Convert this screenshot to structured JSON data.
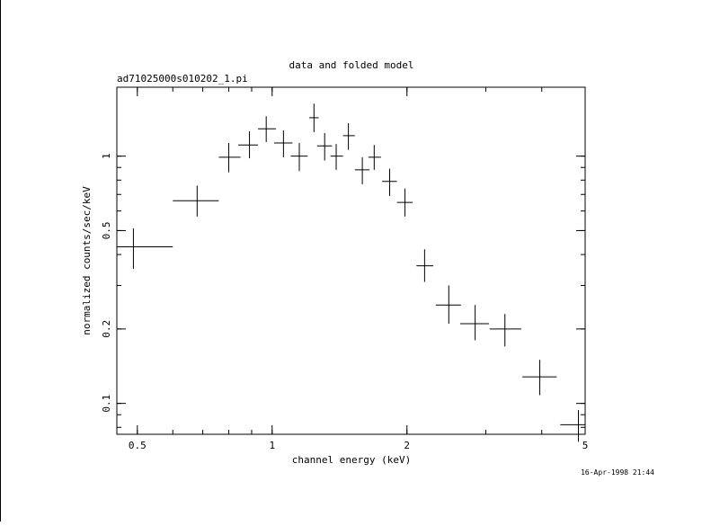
{
  "chart_data": {
    "type": "scatter",
    "title": "data and folded model",
    "subtitle": "ad71025000s010202_1.pi",
    "xlabel": "channel energy (keV)",
    "ylabel": "normalized counts/sec/keV",
    "footer": "16-Apr-1998 21:44",
    "x_scale": "log",
    "y_scale": "log",
    "xlim": [
      0.45,
      5.0
    ],
    "ylim": [
      0.075,
      1.9
    ],
    "grid": false,
    "legend": "none",
    "x_ticks": [
      {
        "value": 0.5,
        "label": "0.5"
      },
      {
        "value": 1,
        "label": "1"
      },
      {
        "value": 2,
        "label": "2"
      },
      {
        "value": 5,
        "label": "5"
      }
    ],
    "y_ticks": [
      {
        "value": 0.1,
        "label": "0.1"
      },
      {
        "value": 0.2,
        "label": "0.2"
      },
      {
        "value": 0.5,
        "label": "0.5"
      },
      {
        "value": 1,
        "label": "1"
      }
    ],
    "points": [
      {
        "x": 0.49,
        "xlo": 0.45,
        "xhi": 0.6,
        "y": 0.43,
        "ylo": 0.35,
        "yhi": 0.51
      },
      {
        "x": 0.68,
        "xlo": 0.6,
        "xhi": 0.76,
        "y": 0.66,
        "ylo": 0.57,
        "yhi": 0.76
      },
      {
        "x": 0.8,
        "xlo": 0.76,
        "xhi": 0.85,
        "y": 0.99,
        "ylo": 0.86,
        "yhi": 1.13
      },
      {
        "x": 0.89,
        "xlo": 0.84,
        "xhi": 0.93,
        "y": 1.11,
        "ylo": 0.98,
        "yhi": 1.26
      },
      {
        "x": 0.97,
        "xlo": 0.93,
        "xhi": 1.02,
        "y": 1.29,
        "ylo": 1.14,
        "yhi": 1.45
      },
      {
        "x": 1.06,
        "xlo": 1.01,
        "xhi": 1.11,
        "y": 1.13,
        "ylo": 0.99,
        "yhi": 1.27
      },
      {
        "x": 1.15,
        "xlo": 1.1,
        "xhi": 1.2,
        "y": 1.0,
        "ylo": 0.87,
        "yhi": 1.13
      },
      {
        "x": 1.24,
        "xlo": 1.21,
        "xhi": 1.27,
        "y": 1.43,
        "ylo": 1.25,
        "yhi": 1.63
      },
      {
        "x": 1.31,
        "xlo": 1.26,
        "xhi": 1.36,
        "y": 1.1,
        "ylo": 0.96,
        "yhi": 1.24
      },
      {
        "x": 1.39,
        "xlo": 1.35,
        "xhi": 1.44,
        "y": 1.0,
        "ylo": 0.88,
        "yhi": 1.12
      },
      {
        "x": 1.48,
        "xlo": 1.44,
        "xhi": 1.53,
        "y": 1.21,
        "ylo": 1.06,
        "yhi": 1.36
      },
      {
        "x": 1.59,
        "xlo": 1.53,
        "xhi": 1.65,
        "y": 0.88,
        "ylo": 0.77,
        "yhi": 0.99
      },
      {
        "x": 1.69,
        "xlo": 1.64,
        "xhi": 1.75,
        "y": 0.99,
        "ylo": 0.88,
        "yhi": 1.11
      },
      {
        "x": 1.83,
        "xlo": 1.76,
        "xhi": 1.9,
        "y": 0.79,
        "ylo": 0.69,
        "yhi": 0.89
      },
      {
        "x": 1.98,
        "xlo": 1.9,
        "xhi": 2.06,
        "y": 0.65,
        "ylo": 0.57,
        "yhi": 0.74
      },
      {
        "x": 2.19,
        "xlo": 2.1,
        "xhi": 2.29,
        "y": 0.36,
        "ylo": 0.31,
        "yhi": 0.42
      },
      {
        "x": 2.48,
        "xlo": 2.32,
        "xhi": 2.64,
        "y": 0.25,
        "ylo": 0.21,
        "yhi": 0.3
      },
      {
        "x": 2.84,
        "xlo": 2.63,
        "xhi": 3.05,
        "y": 0.21,
        "ylo": 0.18,
        "yhi": 0.25
      },
      {
        "x": 3.31,
        "xlo": 3.06,
        "xhi": 3.6,
        "y": 0.2,
        "ylo": 0.17,
        "yhi": 0.23
      },
      {
        "x": 3.96,
        "xlo": 3.62,
        "xhi": 4.32,
        "y": 0.128,
        "ylo": 0.108,
        "yhi": 0.15
      },
      {
        "x": 4.83,
        "xlo": 4.4,
        "xhi": 5.0,
        "y": 0.082,
        "ylo": 0.07,
        "yhi": 0.094
      }
    ]
  }
}
